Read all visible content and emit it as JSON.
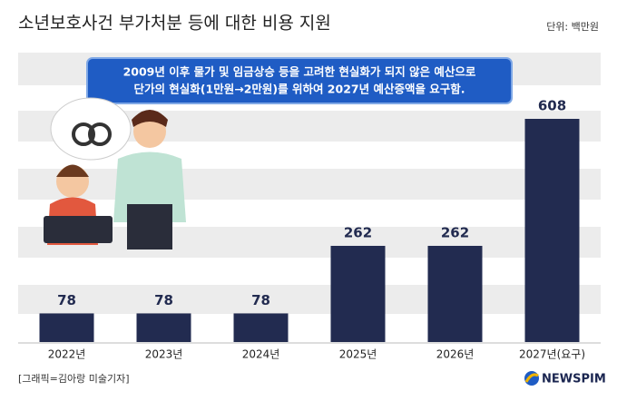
{
  "chart_data": {
    "type": "bar",
    "title": "소년보호사건 부가처분 등에 대한 비용 지원",
    "unit": "단위: 백만원",
    "annotation": [
      "2009년 이후 물가 및 임금상승 등을 고려한 현실화가 되지 않은 예산으로",
      "단가의 현실화(1만원→2만원)를 위하여 2027년 예산증액을 요구함."
    ],
    "categories": [
      "2022년",
      "2023년",
      "2024년",
      "2025년",
      "2026년",
      "2027년(요구)"
    ],
    "values": [
      78,
      78,
      78,
      262,
      262,
      608
    ],
    "color": "#222b50",
    "credit": "[그래픽=김아랑 미술기자]",
    "logo": "NEWSPIM"
  }
}
